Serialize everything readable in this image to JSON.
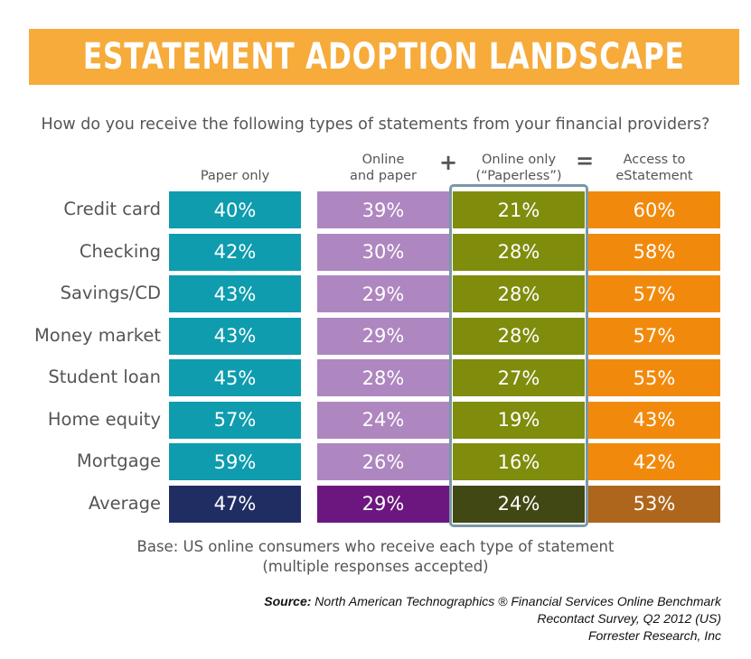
{
  "banner": {
    "title": "ESTATEMENT ADOPTION LANDSCAPE"
  },
  "question": "How do you receive the following types of statements from your financial providers?",
  "operators": {
    "plus": "+",
    "equals": "="
  },
  "chart_data": {
    "type": "table",
    "columns": [
      {
        "label_lines": [
          "Paper only"
        ],
        "color": "#0e9cae",
        "avg_color": "#1f2d63"
      },
      {
        "label_lines": [
          "Online",
          "and paper"
        ],
        "color": "#ae86c0",
        "avg_color": "#6c1780"
      },
      {
        "label_lines": [
          "Online only",
          "(“Paperless”)"
        ],
        "color": "#808c0c",
        "avg_color": "#414814"
      },
      {
        "label_lines": [
          "Access to",
          "eStatement"
        ],
        "color": "#f18a0c",
        "avg_color": "#ad661b"
      }
    ],
    "rows": [
      {
        "label": "Credit card",
        "values": [
          "40%",
          "39%",
          "21%",
          "60%"
        ]
      },
      {
        "label": "Checking",
        "values": [
          "42%",
          "30%",
          "28%",
          "58%"
        ]
      },
      {
        "label": "Savings/CD",
        "values": [
          "43%",
          "29%",
          "28%",
          "57%"
        ]
      },
      {
        "label": "Money market",
        "values": [
          "43%",
          "29%",
          "28%",
          "57%"
        ]
      },
      {
        "label": "Student loan",
        "values": [
          "45%",
          "28%",
          "27%",
          "55%"
        ]
      },
      {
        "label": "Home equity",
        "values": [
          "57%",
          "24%",
          "19%",
          "43%"
        ]
      },
      {
        "label": "Mortgage",
        "values": [
          "59%",
          "26%",
          "16%",
          "42%"
        ]
      },
      {
        "label": "Average",
        "values": [
          "47%",
          "29%",
          "24%",
          "53%"
        ],
        "is_average": true
      }
    ],
    "highlighted_column": 2
  },
  "base": {
    "line1": "Base: US online consumers who receive each type of statement",
    "line2": "(multiple responses accepted)"
  },
  "source": {
    "label": "Source:",
    "line1": "North American Technographics ® Financial Services Online Benchmark",
    "line2": "Recontact Survey, Q2 2012 (US)",
    "line3": "Forrester Research, Inc"
  }
}
